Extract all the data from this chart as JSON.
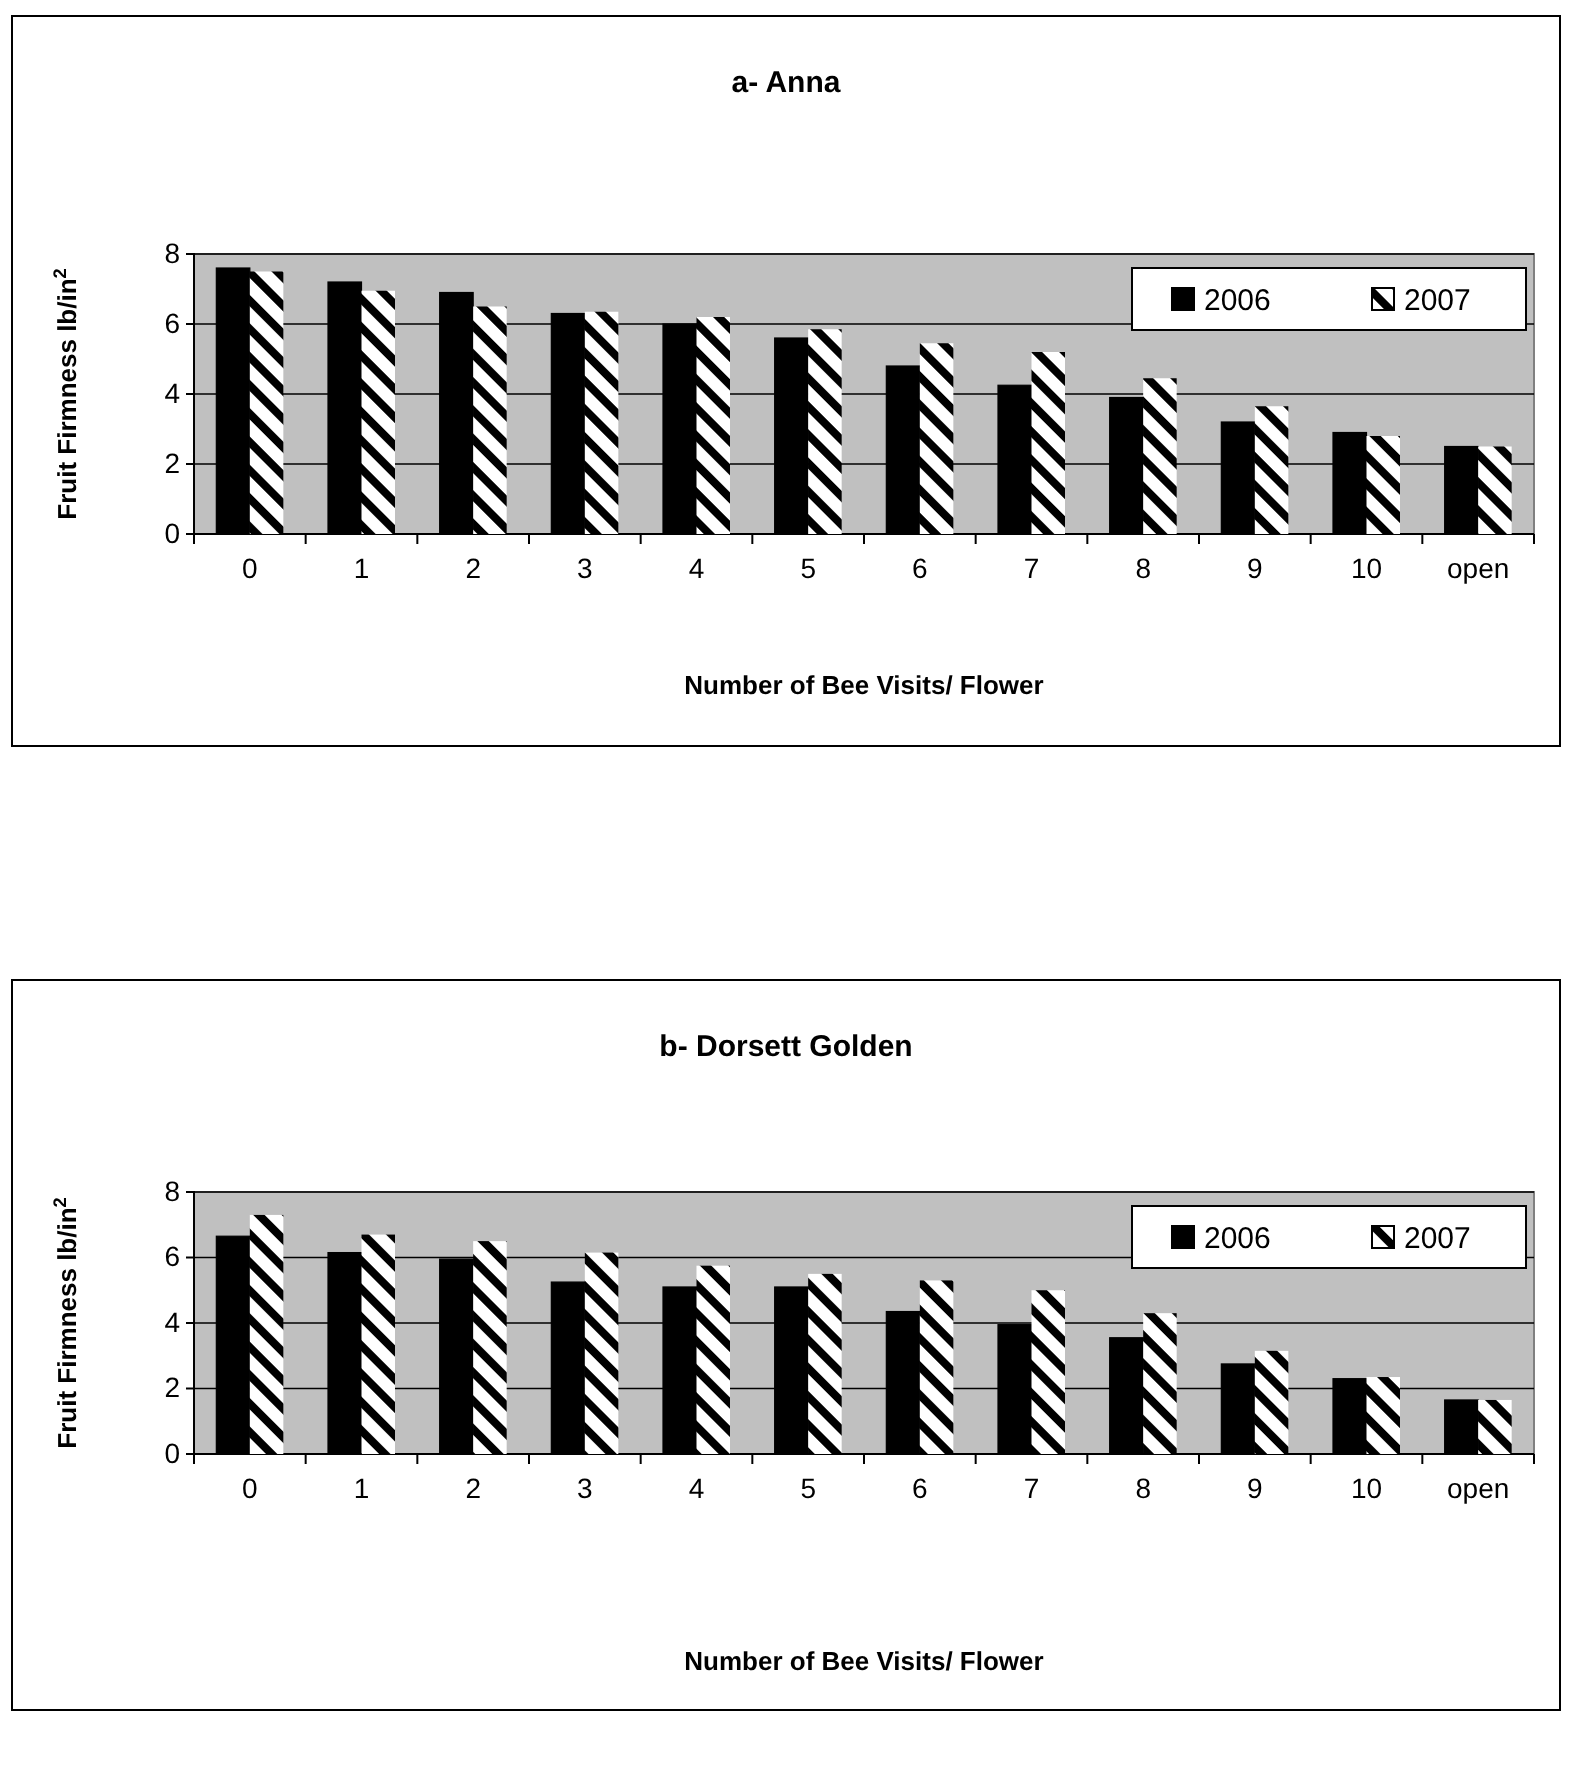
{
  "chart_data": [
    {
      "type": "bar",
      "title": "a- Anna",
      "xlabel": "Number of Bee Visits/ Flower",
      "ylabel": "Fruit Firmness lb/in$^{2}$",
      "categories": [
        "0",
        "1",
        "2",
        "3",
        "4",
        "5",
        "6",
        "7",
        "8",
        "9",
        "10",
        "open"
      ],
      "series": [
        {
          "name": "2006",
          "color": "#000000",
          "values": [
            7.6,
            7.2,
            6.9,
            6.3,
            6.0,
            5.6,
            4.8,
            4.25,
            3.9,
            3.2,
            2.9,
            2.5
          ]
        },
        {
          "name": "2007",
          "color": "#ffffff",
          "values": [
            7.5,
            6.95,
            6.5,
            6.35,
            6.2,
            5.85,
            5.45,
            5.2,
            4.45,
            3.65,
            2.8,
            2.5
          ]
        }
      ],
      "ylim": [
        0,
        8
      ],
      "yticks": [
        0,
        2,
        4,
        6,
        8
      ],
      "grid": "y",
      "legend": "top right"
    },
    {
      "type": "bar",
      "title": "b- Dorsett Golden",
      "xlabel": "Number of Bee Visits/ Flower",
      "ylabel": "Fruit Firmness lb/in$^{2}$",
      "categories": [
        "0",
        "1",
        "2",
        "3",
        "4",
        "5",
        "6",
        "7",
        "8",
        "9",
        "10",
        "open"
      ],
      "series": [
        {
          "name": "2006",
          "color": "#000000",
          "values": [
            6.65,
            6.15,
            5.95,
            5.25,
            5.1,
            5.1,
            4.35,
            3.95,
            3.55,
            2.75,
            2.3,
            1.65
          ]
        },
        {
          "name": "2007",
          "color": "#ffffff",
          "values": [
            7.3,
            6.7,
            6.5,
            6.15,
            5.75,
            5.5,
            5.3,
            5.0,
            4.3,
            3.15,
            2.35,
            1.65
          ]
        }
      ],
      "ylim": [
        0,
        8
      ],
      "yticks": [
        0,
        2,
        4,
        6,
        8
      ],
      "grid": "y",
      "legend": "top right"
    }
  ]
}
